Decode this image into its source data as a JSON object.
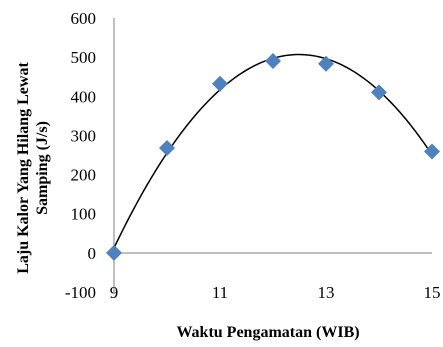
{
  "chart_data": {
    "type": "scatter",
    "xlabel": "Waktu Pengamatan (WIB)",
    "ylabel_lines": [
      "Laju Kalor Yang Hilang Lewat",
      "Samping (J/s)"
    ],
    "xlim": [
      9,
      15
    ],
    "ylim": [
      -100,
      600
    ],
    "x_ticks": [
      9,
      11,
      13,
      15
    ],
    "y_ticks": [
      -100,
      0,
      100,
      200,
      300,
      400,
      500,
      600
    ],
    "grid": false,
    "legend": "none",
    "marker_color": "#4f81bd",
    "trendline": {
      "type": "polynomial",
      "color": "#000000"
    },
    "series": [
      {
        "x": [
          9,
          10,
          11,
          12,
          13,
          14,
          15
        ],
        "y": [
          0,
          268,
          432,
          490,
          483,
          410,
          259
        ]
      }
    ]
  }
}
